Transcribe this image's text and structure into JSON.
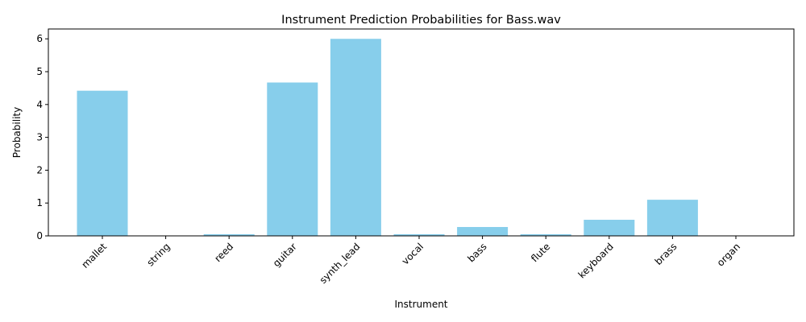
{
  "chart_data": {
    "type": "bar",
    "title": "Instrument Prediction Probabilities for Bass.wav",
    "xlabel": "Instrument",
    "ylabel": "Probability",
    "categories": [
      "mallet",
      "string",
      "reed",
      "guitar",
      "synth_lead",
      "vocal",
      "bass",
      "flute",
      "keyboard",
      "brass",
      "organ"
    ],
    "values": [
      4.42,
      0.0,
      0.05,
      4.67,
      6.0,
      0.05,
      0.27,
      0.05,
      0.49,
      1.1,
      0.0
    ],
    "ylim": [
      0,
      6.3
    ],
    "yticks": [
      "0",
      "1",
      "2",
      "3",
      "4",
      "5",
      "6"
    ],
    "bar_color": "#87ceeb",
    "grid": false
  }
}
